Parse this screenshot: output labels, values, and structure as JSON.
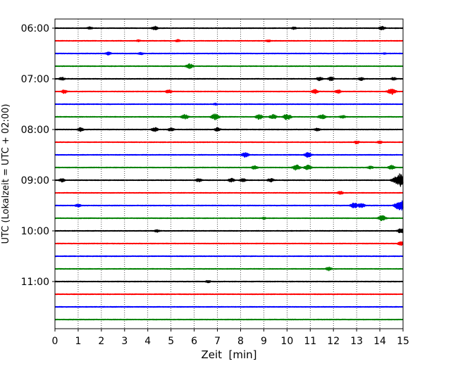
{
  "chart_data": {
    "type": "line",
    "title": "",
    "xlabel": "Zeit  [min]",
    "ylabel": "UTC (Lokalzeit = UTC + 02:00)",
    "xlim": [
      0,
      15
    ],
    "xticks": [
      0,
      1,
      2,
      3,
      4,
      5,
      6,
      7,
      8,
      9,
      10,
      11,
      12,
      13,
      14,
      15
    ],
    "y_tick_labels": [
      "06:00",
      "07:00",
      "08:00",
      "09:00",
      "10:00",
      "11:00"
    ],
    "grid": "vertical dotted lines at each minute",
    "trace_interval_min": 15,
    "trace_colors_cycle": [
      "#000000",
      "#ff0000",
      "#0000ff",
      "#008000"
    ],
    "traces": [
      {
        "start": "06:00",
        "color": "#000000",
        "events": [
          [
            1.5,
            0.25
          ],
          [
            4.3,
            0.35
          ],
          [
            10.3,
            0.25
          ],
          [
            14.1,
            0.35
          ]
        ]
      },
      {
        "start": "06:15",
        "color": "#ff0000",
        "events": [
          [
            3.6,
            0.2
          ],
          [
            5.3,
            0.25
          ],
          [
            9.2,
            0.25
          ]
        ]
      },
      {
        "start": "06:30",
        "color": "#0000ff",
        "events": [
          [
            2.3,
            0.3
          ],
          [
            3.7,
            0.25
          ],
          [
            14.2,
            0.15
          ]
        ]
      },
      {
        "start": "06:45",
        "color": "#008000",
        "events": [
          [
            5.8,
            0.45
          ]
        ]
      },
      {
        "start": "07:00",
        "color": "#000000",
        "events": [
          [
            0.3,
            0.3
          ],
          [
            11.4,
            0.35
          ],
          [
            11.9,
            0.35
          ],
          [
            13.2,
            0.3
          ],
          [
            14.6,
            0.3
          ]
        ]
      },
      {
        "start": "07:15",
        "color": "#ff0000",
        "events": [
          [
            0.4,
            0.35
          ],
          [
            4.9,
            0.35
          ],
          [
            11.2,
            0.4
          ],
          [
            12.2,
            0.35
          ],
          [
            14.5,
            0.6
          ]
        ]
      },
      {
        "start": "07:30",
        "color": "#0000ff",
        "events": [
          [
            6.9,
            0.2
          ]
        ]
      },
      {
        "start": "07:45",
        "color": "#008000",
        "events": [
          [
            5.6,
            0.45
          ],
          [
            6.9,
            0.55
          ],
          [
            8.8,
            0.45
          ],
          [
            9.4,
            0.45
          ],
          [
            10.0,
            0.55
          ],
          [
            11.5,
            0.45
          ],
          [
            12.4,
            0.3
          ]
        ]
      },
      {
        "start": "08:00",
        "color": "#000000",
        "events": [
          [
            1.1,
            0.35
          ],
          [
            4.3,
            0.4
          ],
          [
            5.0,
            0.35
          ],
          [
            7.0,
            0.35
          ],
          [
            11.3,
            0.3
          ]
        ]
      },
      {
        "start": "08:15",
        "color": "#ff0000",
        "events": [
          [
            13.0,
            0.3
          ],
          [
            14.0,
            0.25
          ]
        ]
      },
      {
        "start": "08:30",
        "color": "#0000ff",
        "events": [
          [
            8.2,
            0.45
          ],
          [
            10.9,
            0.45
          ]
        ]
      },
      {
        "start": "08:45",
        "color": "#008000",
        "events": [
          [
            8.6,
            0.35
          ],
          [
            10.4,
            0.5
          ],
          [
            10.9,
            0.45
          ],
          [
            13.6,
            0.3
          ],
          [
            14.5,
            0.4
          ]
        ]
      },
      {
        "start": "09:00",
        "color": "#000000",
        "events": [
          [
            0.3,
            0.35
          ],
          [
            6.2,
            0.35
          ],
          [
            7.6,
            0.35
          ],
          [
            8.1,
            0.35
          ],
          [
            9.3,
            0.35
          ],
          [
            14.9,
            1.2
          ]
        ]
      },
      {
        "start": "09:15",
        "color": "#ff0000",
        "events": [
          [
            12.3,
            0.3
          ]
        ]
      },
      {
        "start": "09:30",
        "color": "#0000ff",
        "events": [
          [
            1.0,
            0.3
          ],
          [
            12.9,
            0.5
          ],
          [
            13.2,
            0.45
          ],
          [
            14.9,
            0.9
          ]
        ]
      },
      {
        "start": "09:45",
        "color": "#008000",
        "events": [
          [
            9.0,
            0.2
          ],
          [
            14.1,
            0.5
          ]
        ]
      },
      {
        "start": "10:00",
        "color": "#000000",
        "events": [
          [
            4.4,
            0.25
          ],
          [
            14.9,
            0.4
          ]
        ]
      },
      {
        "start": "10:15",
        "color": "#ff0000",
        "events": [
          [
            14.9,
            0.35
          ]
        ]
      },
      {
        "start": "10:30",
        "color": "#0000ff",
        "events": []
      },
      {
        "start": "10:45",
        "color": "#008000",
        "events": [
          [
            11.8,
            0.35
          ]
        ]
      },
      {
        "start": "11:00",
        "color": "#000000",
        "events": [
          [
            6.6,
            0.25
          ]
        ]
      },
      {
        "start": "11:15",
        "color": "#ff0000",
        "events": []
      },
      {
        "start": "11:30",
        "color": "#0000ff",
        "events": []
      },
      {
        "start": "11:45",
        "color": "#008000",
        "events": []
      }
    ]
  }
}
